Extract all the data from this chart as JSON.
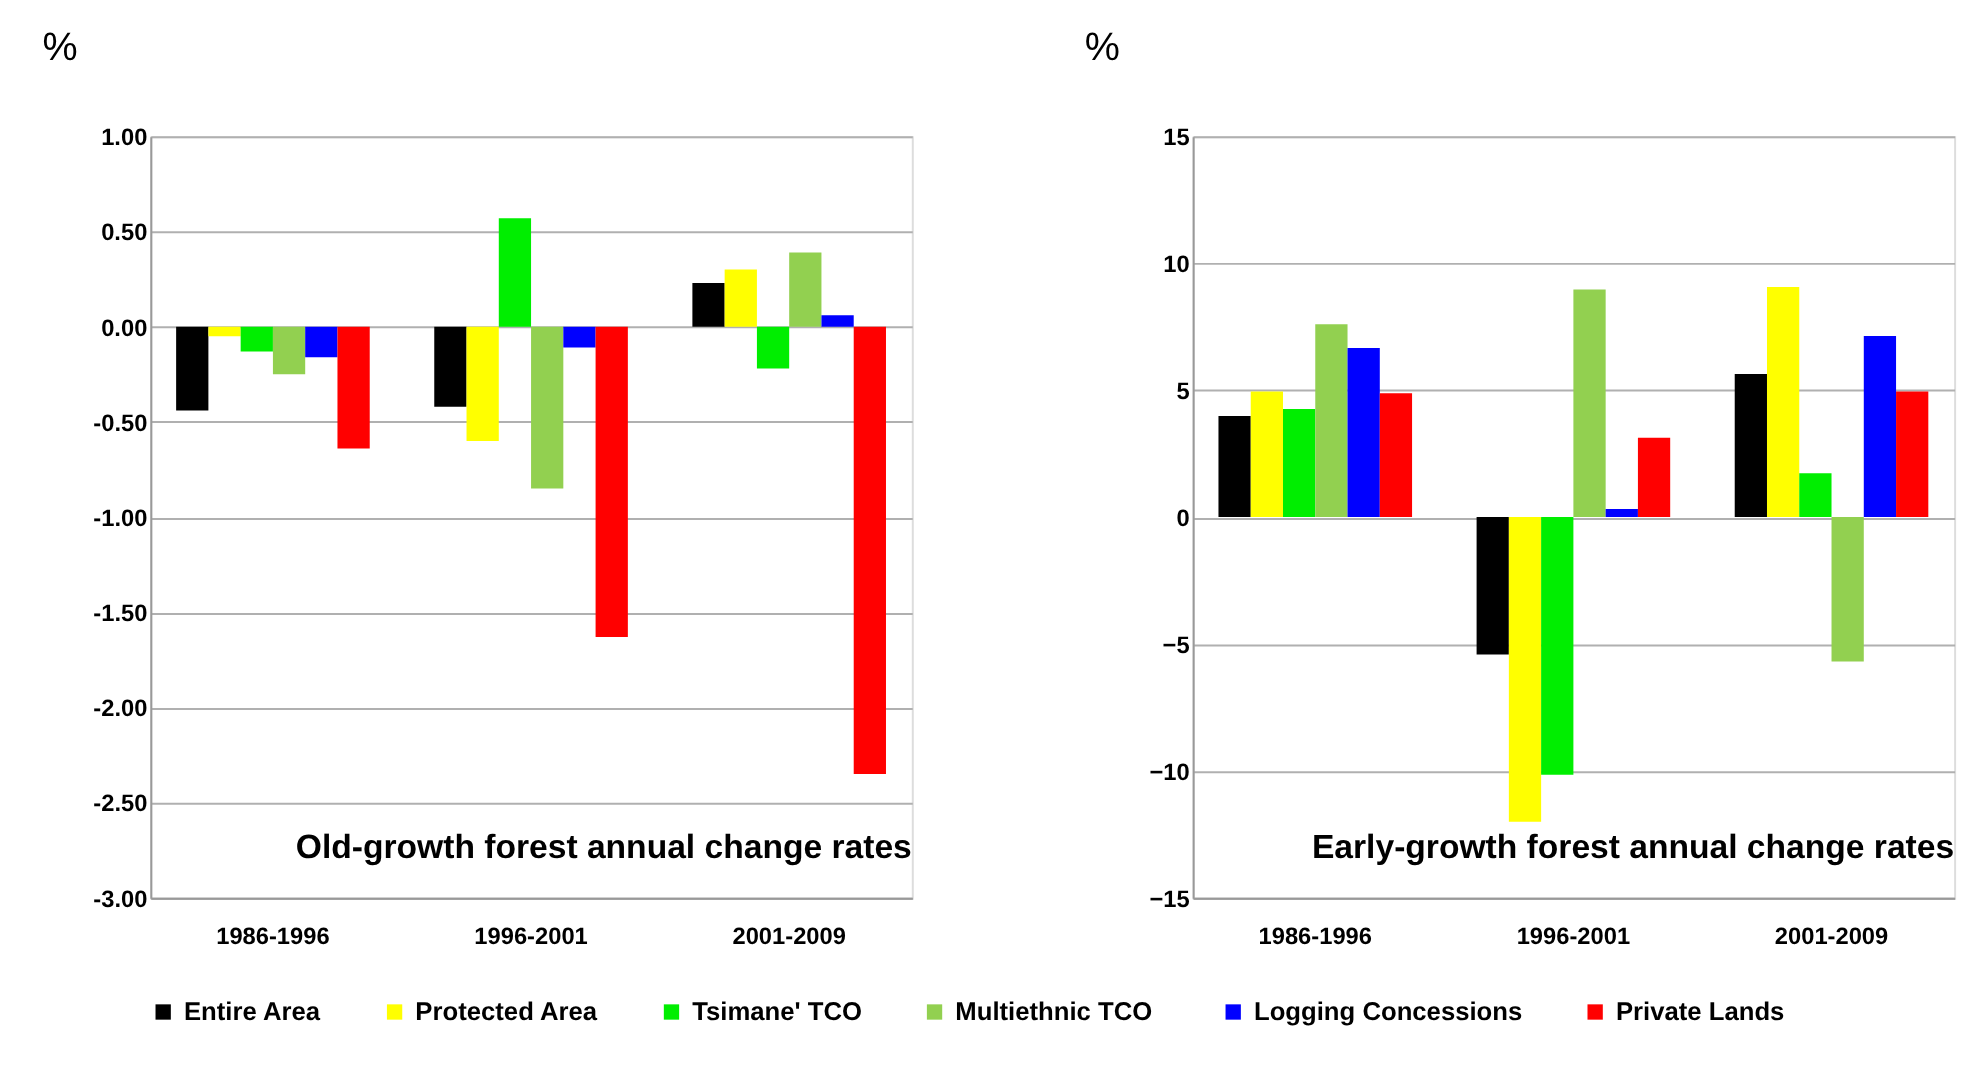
{
  "chart_data": [
    {
      "type": "bar",
      "title": "Old-growth forest annual change rates",
      "ylabel": "%",
      "categories": [
        "1986-1996",
        "1996-2001",
        "2001-2009"
      ],
      "series": [
        {
          "name": "Entire Area",
          "color": "#000000",
          "values": [
            -0.44,
            -0.42,
            0.23
          ]
        },
        {
          "name": "Protected Area",
          "color": "#ffff00",
          "values": [
            -0.05,
            -0.6,
            0.3
          ]
        },
        {
          "name": "Tsimane' TCO",
          "color": "#00ee00",
          "values": [
            -0.13,
            0.57,
            -0.22
          ]
        },
        {
          "name": "Multiethnic  TCO",
          "color": "#92d050",
          "values": [
            -0.25,
            -0.85,
            0.39
          ]
        },
        {
          "name": "Logging Concessions",
          "color": "#0000ff",
          "values": [
            -0.16,
            -0.11,
            0.06
          ]
        },
        {
          "name": "Private Lands",
          "color": "#ff0000",
          "values": [
            -0.64,
            -1.63,
            -2.35
          ]
        }
      ],
      "ylim": [
        -3,
        1
      ],
      "yticks": [
        {
          "value": -3,
          "label": "-3.00"
        },
        {
          "value": -2.5,
          "label": "-2.50"
        },
        {
          "value": -2,
          "label": "-2.00"
        },
        {
          "value": -1.5,
          "label": "-1.50"
        },
        {
          "value": -1,
          "label": "-1.00"
        },
        {
          "value": -0.5,
          "label": "-0.50"
        },
        {
          "value": 0,
          "label": "0.00"
        },
        {
          "value": 0.5,
          "label": "0.50"
        },
        {
          "value": 1,
          "label": "1.00"
        }
      ],
      "grid": "y",
      "legend": "bottom"
    },
    {
      "type": "bar",
      "title": "Early-growth forest annual change rates",
      "ylabel": "%",
      "categories": [
        "1986-1996",
        "1996-2001",
        "2001-2009"
      ],
      "series": [
        {
          "name": "Entire Area",
          "color": "#000000",
          "values": [
            3.98,
            -5.42,
            5.64
          ]
        },
        {
          "name": "Protected Area",
          "color": "#ffff00",
          "values": [
            4.95,
            -12.0,
            9.06
          ]
        },
        {
          "name": "Tsimane' TCO",
          "color": "#00ee00",
          "values": [
            4.26,
            -10.15,
            1.73
          ]
        },
        {
          "name": "Multiethnic  TCO",
          "color": "#92d050",
          "values": [
            7.6,
            8.96,
            -5.69
          ]
        },
        {
          "name": "Logging Concessions",
          "color": "#0000ff",
          "values": [
            6.66,
            0.32,
            7.13
          ]
        },
        {
          "name": "Private Lands",
          "color": "#ff0000",
          "values": [
            4.88,
            3.12,
            4.95
          ]
        }
      ],
      "ylim": [
        -15,
        15
      ],
      "yticks": [
        -15,
        -10,
        -5,
        0,
        5,
        10,
        15
      ],
      "grid": "y",
      "legend": "bottom"
    }
  ]
}
